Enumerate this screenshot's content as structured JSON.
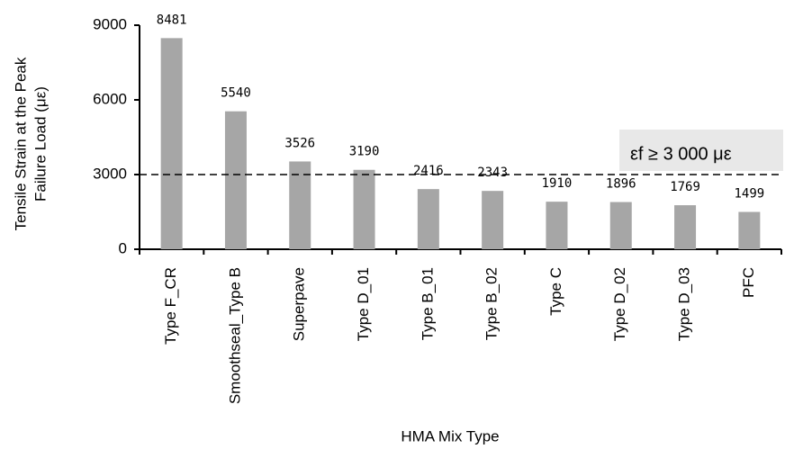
{
  "chart_data": {
    "type": "bar",
    "y_label": [
      "Tensile Strain at the Peak",
      "Failure Load (με)"
    ],
    "x_label": "HMA Mix Type",
    "categories": [
      "Type F_CR",
      "Smoothseal_Type B",
      "Superpave",
      "Type D_01",
      "Type B_01",
      "Type B_02",
      "Type C",
      "Type D_02",
      "Type D_03",
      "PFC"
    ],
    "values": [
      8481,
      5540,
      3526,
      3190,
      2416,
      2343,
      1910,
      1896,
      1769,
      1499
    ],
    "color": "#a6a6a6",
    "ylim": [
      0,
      9000
    ],
    "yticks": [
      0,
      3000,
      6000,
      9000
    ],
    "threshold": 3000,
    "annotation": "εf ≥ 3 000 με"
  }
}
